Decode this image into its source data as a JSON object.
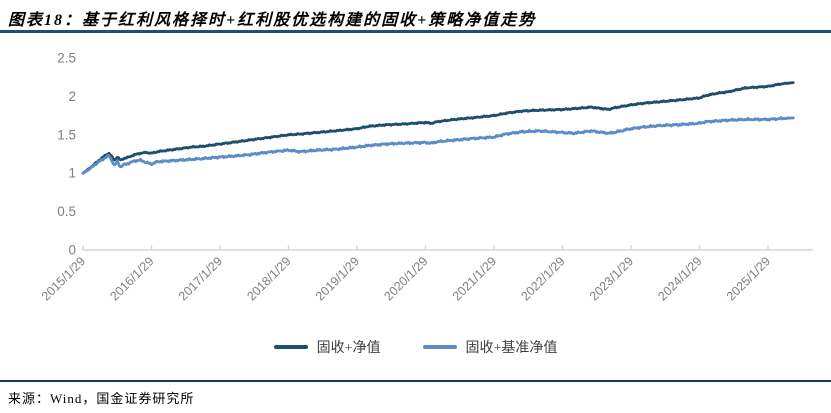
{
  "header": {
    "title": "图表18：基于红利风格择时+红利股优选构建的固收+策略净值走势"
  },
  "footer": {
    "source": "来源：Wind，国金证券研究所"
  },
  "colors": {
    "title_rule": "#1e5077",
    "footer_rule": "#17375e",
    "axis": "#d6d6d6",
    "tick_label": "#7f7f7f",
    "series1": "#1d4e6b",
    "series2": "#5b8cc8",
    "legend_text": "#3f3f3f"
  },
  "chart_data": {
    "type": "line",
    "title": "基于红利风格择时+红利股优选构建的固收+策略净值走势",
    "grid": false,
    "legend_position": "bottom-center",
    "x_axis": {
      "tick_labels": [
        "2015/1/29",
        "2016/1/29",
        "2017/1/29",
        "2018/1/29",
        "2019/1/29",
        "2020/1/29",
        "2021/1/29",
        "2022/1/29",
        "2023/1/29",
        "2024/1/29",
        "2025/1/29"
      ],
      "tick_years": [
        2015.08,
        2016.08,
        2017.08,
        2018.08,
        2019.08,
        2020.08,
        2021.08,
        2022.08,
        2023.08,
        2024.08,
        2025.08
      ],
      "range_years": [
        2015.08,
        2025.74
      ]
    },
    "y_axis": {
      "ticks": [
        0,
        0.5,
        1,
        1.5,
        2,
        2.5
      ],
      "lim": [
        0,
        2.5
      ]
    },
    "x": [
      2015.08,
      2015.17,
      2015.25,
      2015.33,
      2015.42,
      2015.46,
      2015.54,
      2015.58,
      2015.63,
      2015.67,
      2015.75,
      2015.83,
      2015.92,
      2016.0,
      2016.08,
      2016.17,
      2016.33,
      2016.5,
      2016.67,
      2016.83,
      2017.08,
      2017.25,
      2017.5,
      2017.75,
      2018.08,
      2018.25,
      2018.5,
      2018.75,
      2019.08,
      2019.25,
      2019.5,
      2019.75,
      2020.08,
      2020.17,
      2020.25,
      2020.5,
      2020.75,
      2021.08,
      2021.25,
      2021.5,
      2021.75,
      2022.08,
      2022.25,
      2022.5,
      2022.75,
      2022.83,
      2023.08,
      2023.25,
      2023.5,
      2023.75,
      2024.08,
      2024.17,
      2024.33,
      2024.5,
      2024.75,
      2025.08,
      2025.25,
      2025.45
    ],
    "series": [
      {
        "name": "固收+净值",
        "color": "#1d4e6b",
        "values": [
          1.0,
          1.06,
          1.12,
          1.18,
          1.24,
          1.26,
          1.17,
          1.21,
          1.17,
          1.19,
          1.21,
          1.24,
          1.26,
          1.27,
          1.26,
          1.28,
          1.3,
          1.32,
          1.34,
          1.35,
          1.38,
          1.4,
          1.43,
          1.46,
          1.5,
          1.51,
          1.53,
          1.55,
          1.58,
          1.61,
          1.63,
          1.64,
          1.66,
          1.65,
          1.67,
          1.7,
          1.72,
          1.75,
          1.78,
          1.81,
          1.82,
          1.83,
          1.84,
          1.86,
          1.83,
          1.85,
          1.89,
          1.91,
          1.93,
          1.95,
          1.98,
          2.01,
          2.04,
          2.06,
          2.11,
          2.13,
          2.16,
          2.18
        ]
      },
      {
        "name": "固收+基准净值",
        "color": "#5b8cc8",
        "values": [
          1.0,
          1.05,
          1.11,
          1.16,
          1.21,
          1.23,
          1.1,
          1.15,
          1.08,
          1.11,
          1.13,
          1.16,
          1.17,
          1.14,
          1.12,
          1.15,
          1.16,
          1.17,
          1.18,
          1.19,
          1.21,
          1.22,
          1.24,
          1.27,
          1.3,
          1.28,
          1.3,
          1.31,
          1.34,
          1.36,
          1.38,
          1.39,
          1.4,
          1.39,
          1.41,
          1.43,
          1.45,
          1.47,
          1.51,
          1.54,
          1.55,
          1.53,
          1.52,
          1.55,
          1.52,
          1.53,
          1.58,
          1.6,
          1.62,
          1.63,
          1.65,
          1.67,
          1.68,
          1.69,
          1.7,
          1.7,
          1.71,
          1.72
        ]
      }
    ]
  }
}
